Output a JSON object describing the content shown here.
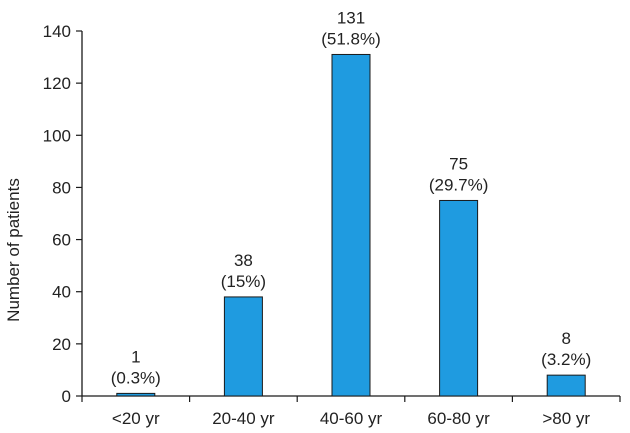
{
  "chart_data": {
    "type": "bar",
    "categories": [
      "<20 yr",
      "20-40 yr",
      "40-60 yr",
      "60-80 yr",
      ">80 yr"
    ],
    "values": [
      1,
      38,
      131,
      75,
      8
    ],
    "percent_labels": [
      "(0.3%)",
      "(15%)",
      "(51.8%)",
      "(29.7%)",
      "(3.2%)"
    ],
    "title": "",
    "xlabel": "",
    "ylabel": "Number of patients",
    "ylim": [
      0,
      140
    ],
    "yticks": [
      0,
      20,
      40,
      60,
      80,
      100,
      120,
      140
    ],
    "grid": false,
    "legend": "none",
    "bar_color": "#1f9be0",
    "bar_edge_color": "#1a1a1a"
  }
}
